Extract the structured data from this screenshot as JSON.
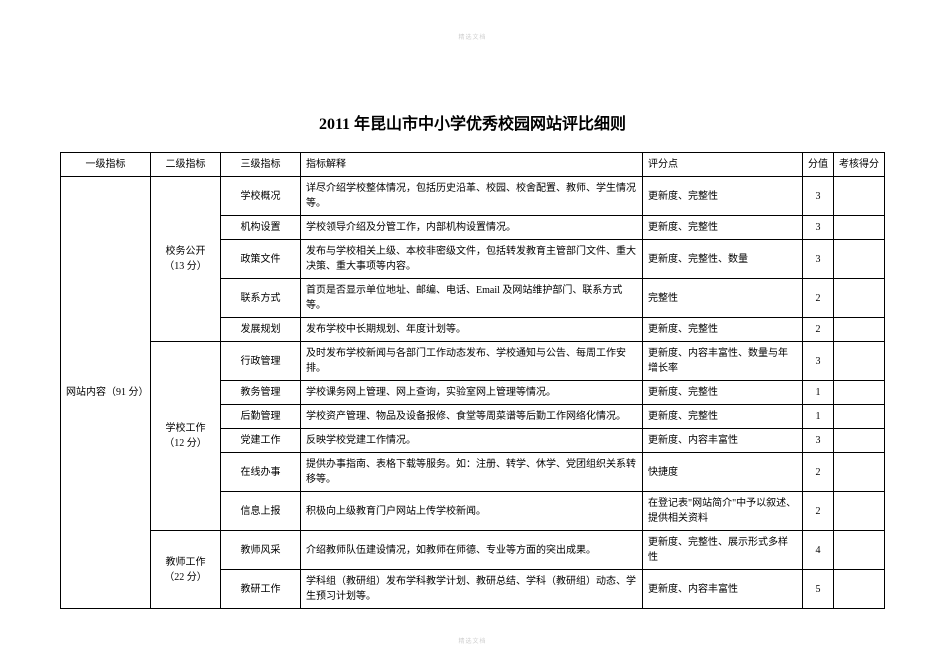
{
  "watermark": "精选文档",
  "title": "2011 年昆山市中小学优秀校园网站评比细则",
  "headers": {
    "level1": "一级指标",
    "level2": "二级指标",
    "level3": "三级指标",
    "desc": "指标解释",
    "criteria": "评分点",
    "score": "分值",
    "actual": "考核得分"
  },
  "level1": {
    "label": "网站内容（91 分）"
  },
  "groups": [
    {
      "label": "校务公开（13 分）",
      "rows": [
        {
          "l3": "学校概况",
          "desc": "详尽介绍学校整体情况，包括历史沿革、校园、校舍配置、教师、学生情况等。",
          "crit": "更新度、完整性",
          "score": "3"
        },
        {
          "l3": "机构设置",
          "desc": "学校领导介绍及分管工作，内部机构设置情况。",
          "crit": "更新度、完整性",
          "score": "3"
        },
        {
          "l3": "政策文件",
          "desc": "发布与学校相关上级、本校非密级文件，包括转发教育主管部门文件、重大决策、重大事项等内容。",
          "crit": "更新度、完整性、数量",
          "score": "3"
        },
        {
          "l3": "联系方式",
          "desc": "首页是否显示单位地址、邮编、电话、Email 及网站维护部门、联系方式等。",
          "crit": "完整性",
          "score": "2"
        },
        {
          "l3": "发展规划",
          "desc": "发布学校中长期规划、年度计划等。",
          "crit": "更新度、完整性",
          "score": "2"
        }
      ]
    },
    {
      "label": "学校工作（12 分）",
      "rows": [
        {
          "l3": "行政管理",
          "desc": "及时发布学校新闻与各部门工作动态发布、学校通知与公告、每周工作安排。",
          "crit": "更新度、内容丰富性、数量与年增长率",
          "score": "3"
        },
        {
          "l3": "教务管理",
          "desc": "学校课务网上管理、网上查询，实验室网上管理等情况。",
          "crit": "更新度、完整性",
          "score": "1"
        },
        {
          "l3": "后勤管理",
          "desc": "学校资产管理、物品及设备报修、食堂等周菜谱等后勤工作网络化情况。",
          "crit": "更新度、完整性",
          "score": "1"
        },
        {
          "l3": "党建工作",
          "desc": "反映学校党建工作情况。",
          "crit": "更新度、内容丰富性",
          "score": "3"
        },
        {
          "l3": "在线办事",
          "desc": "提供办事指南、表格下载等服务。如：注册、转学、休学、党团组织关系转移等。",
          "crit": "快捷度",
          "score": "2"
        },
        {
          "l3": "信息上报",
          "desc": "积极向上级教育门户网站上传学校新闻。",
          "crit": "在登记表\"网站简介\"中予以叙述、提供相关资料",
          "score": "2"
        }
      ]
    },
    {
      "label": "教师工作（22 分）",
      "rows": [
        {
          "l3": "教师风采",
          "desc": "介绍教师队伍建设情况，如教师在师德、专业等方面的突出成果。",
          "crit": "更新度、完整性、展示形式多样性",
          "score": "4"
        },
        {
          "l3": "教研工作",
          "desc": "学科组（教研组）发布学科教学计划、教研总结、学科（教研组）动态、学生预习计划等。",
          "crit": "更新度、内容丰富性",
          "score": "5"
        }
      ]
    }
  ]
}
